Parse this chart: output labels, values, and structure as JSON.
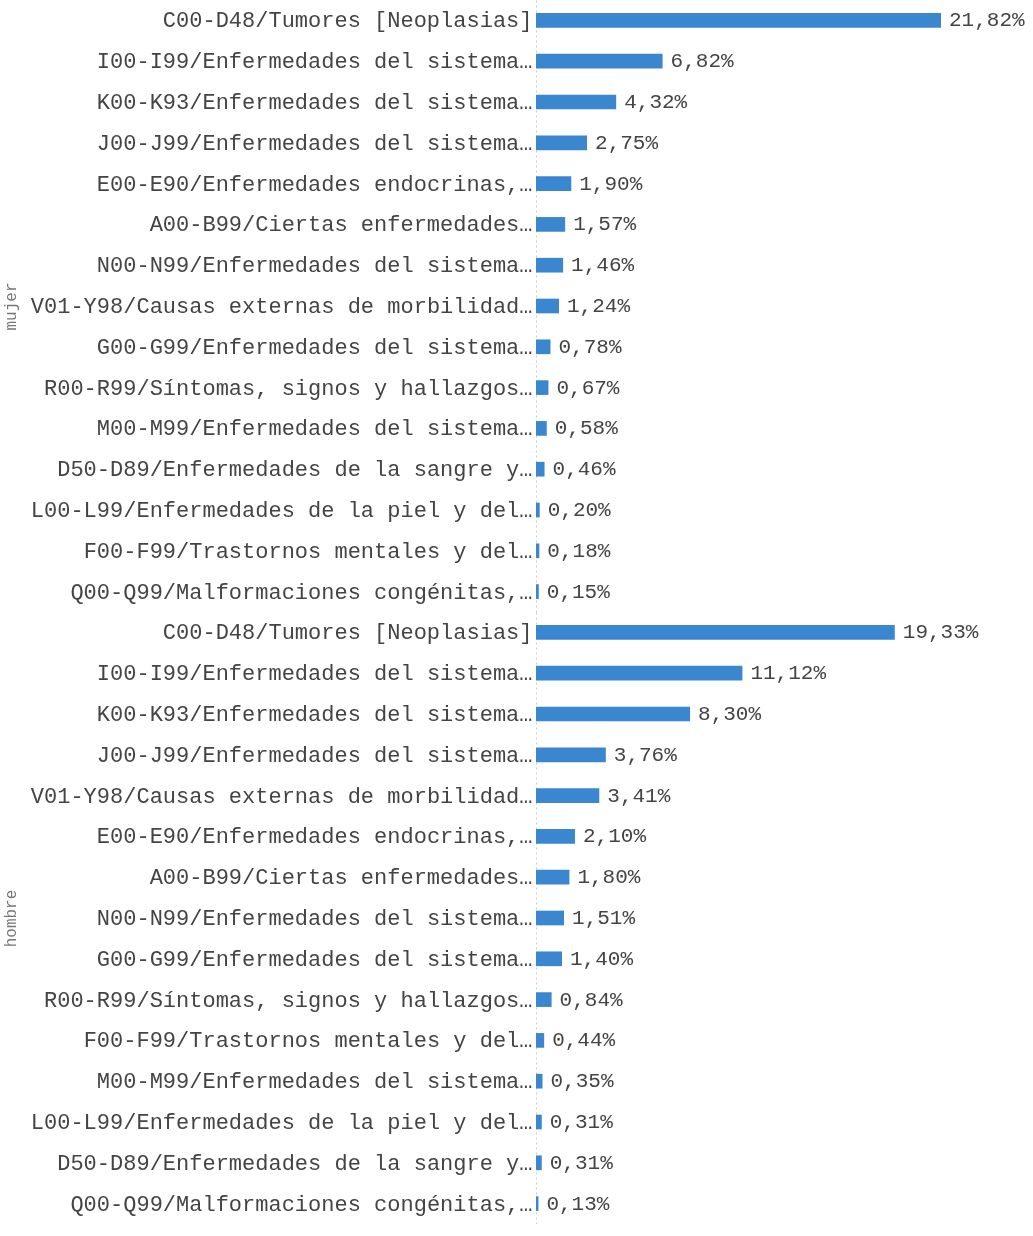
{
  "chart_data": [
    {
      "type": "bar",
      "orientation": "horizontal",
      "ylabel": "mujer",
      "color": "#3a87d0",
      "categories": [
        "C00-D48/Tumores [Neoplasias]",
        "I00-I99/Enfermedades del sistema…",
        "K00-K93/Enfermedades del sistema…",
        "J00-J99/Enfermedades del sistema…",
        "E00-E90/Enfermedades endocrinas,…",
        "A00-B99/Ciertas enfermedades…",
        "N00-N99/Enfermedades del sistema…",
        "V01-Y98/Causas externas de morbilidad…",
        "G00-G99/Enfermedades del sistema…",
        "R00-R99/Síntomas, signos y hallazgos…",
        "M00-M99/Enfermedades del sistema…",
        "D50-D89/Enfermedades de la sangre y…",
        "L00-L99/Enfermedades de la piel y del…",
        "F00-F99/Trastornos mentales y del…",
        "Q00-Q99/Malformaciones congénitas,…"
      ],
      "values": [
        21.82,
        6.82,
        4.32,
        2.75,
        1.9,
        1.57,
        1.46,
        1.24,
        0.78,
        0.67,
        0.58,
        0.46,
        0.2,
        0.18,
        0.15
      ],
      "value_labels": [
        "21,82%",
        "6,82%",
        "4,32%",
        "2,75%",
        "1,90%",
        "1,57%",
        "1,46%",
        "1,24%",
        "0,78%",
        "0,67%",
        "0,58%",
        "0,46%",
        "0,20%",
        "0,18%",
        "0,15%"
      ]
    },
    {
      "type": "bar",
      "orientation": "horizontal",
      "ylabel": "hombre",
      "color": "#3a87d0",
      "categories": [
        "C00-D48/Tumores [Neoplasias]",
        "I00-I99/Enfermedades del sistema…",
        "K00-K93/Enfermedades del sistema…",
        "J00-J99/Enfermedades del sistema…",
        "V01-Y98/Causas externas de morbilidad…",
        "E00-E90/Enfermedades endocrinas,…",
        "A00-B99/Ciertas enfermedades…",
        "N00-N99/Enfermedades del sistema…",
        "G00-G99/Enfermedades del sistema…",
        "R00-R99/Síntomas, signos y hallazgos…",
        "F00-F99/Trastornos mentales y del…",
        "M00-M99/Enfermedades del sistema…",
        "L00-L99/Enfermedades de la piel y del…",
        "D50-D89/Enfermedades de la sangre y…",
        "Q00-Q99/Malformaciones congénitas,…"
      ],
      "values": [
        19.33,
        11.12,
        8.3,
        3.76,
        3.41,
        2.1,
        1.8,
        1.51,
        1.4,
        0.84,
        0.44,
        0.35,
        0.31,
        0.31,
        0.13
      ],
      "value_labels": [
        "19,33%",
        "11,12%",
        "8,30%",
        "3,76%",
        "3,41%",
        "2,10%",
        "1,80%",
        "1,51%",
        "1,40%",
        "0,84%",
        "0,44%",
        "0,35%",
        "0,31%",
        "0,31%",
        "0,13%"
      ]
    }
  ]
}
